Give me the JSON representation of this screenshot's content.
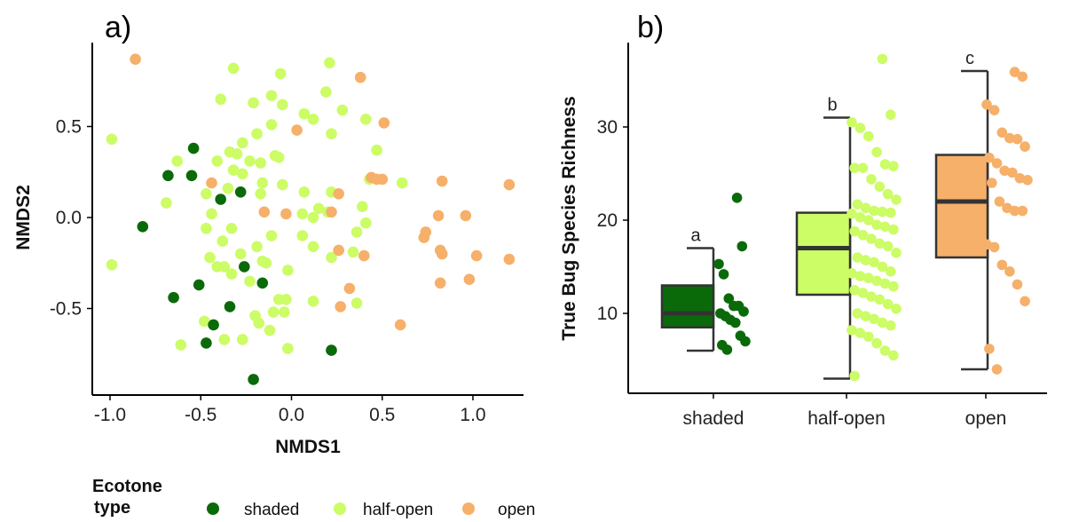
{
  "colors": {
    "shaded": "#0a6a0a",
    "half-open": "#ccfc66",
    "open": "#f6b06a",
    "axis": "#000000",
    "box_line": "#333333"
  },
  "legend": {
    "title_line1": "Ecotone",
    "title_line2": "type",
    "items": [
      {
        "key": "shaded",
        "label": "shaded"
      },
      {
        "key": "half-open",
        "label": "half-open"
      },
      {
        "key": "open",
        "label": "open"
      }
    ]
  },
  "chart_data": [
    {
      "panel": "a)",
      "type": "scatter",
      "xlabel": "NMDS1",
      "ylabel": "NMDS2",
      "xlim": [
        -1.1,
        1.3
      ],
      "ylim": [
        -0.95,
        0.95
      ],
      "xticks": [
        "-1.0",
        "-0.5",
        "0.0",
        "0.5",
        "1.0"
      ],
      "yticks": [
        "0.5",
        "0.0",
        "-0.5"
      ],
      "series": [
        {
          "name": "shaded",
          "points": [
            [
              -0.54,
              0.38
            ],
            [
              -0.68,
              0.23
            ],
            [
              -0.55,
              0.23
            ],
            [
              -0.28,
              0.14
            ],
            [
              -0.39,
              0.1
            ],
            [
              -0.82,
              -0.05
            ],
            [
              -0.26,
              -0.27
            ],
            [
              -0.51,
              -0.37
            ],
            [
              -0.16,
              -0.36
            ],
            [
              -0.65,
              -0.44
            ],
            [
              -0.34,
              -0.49
            ],
            [
              -0.43,
              -0.59
            ],
            [
              -0.47,
              -0.69
            ],
            [
              0.22,
              -0.73
            ],
            [
              -0.21,
              -0.89
            ]
          ]
        },
        {
          "name": "half-open",
          "points": [
            [
              -0.99,
              0.43
            ],
            [
              -0.32,
              0.82
            ],
            [
              -0.06,
              0.79
            ],
            [
              0.21,
              0.85
            ],
            [
              -0.11,
              0.67
            ],
            [
              0.19,
              0.69
            ],
            [
              -0.39,
              0.65
            ],
            [
              -0.21,
              0.63
            ],
            [
              -0.05,
              0.62
            ],
            [
              0.28,
              0.59
            ],
            [
              0.07,
              0.57
            ],
            [
              0.12,
              0.54
            ],
            [
              0.41,
              0.54
            ],
            [
              -0.11,
              0.51
            ],
            [
              0.22,
              0.46
            ],
            [
              -0.19,
              0.46
            ],
            [
              0.47,
              0.37
            ],
            [
              -0.27,
              0.41
            ],
            [
              -0.34,
              0.36
            ],
            [
              -0.3,
              0.35
            ],
            [
              -0.09,
              0.34
            ],
            [
              -0.07,
              0.33
            ],
            [
              -0.23,
              0.31
            ],
            [
              -0.41,
              0.31
            ],
            [
              -0.17,
              0.3
            ],
            [
              -0.63,
              0.31
            ],
            [
              -0.32,
              0.26
            ],
            [
              -0.27,
              0.24
            ],
            [
              0.43,
              0.21
            ],
            [
              0.61,
              0.19
            ],
            [
              -0.16,
              0.19
            ],
            [
              -0.05,
              0.18
            ],
            [
              -0.35,
              0.16
            ],
            [
              0.07,
              0.14
            ],
            [
              0.22,
              0.14
            ],
            [
              -0.17,
              0.13
            ],
            [
              -0.47,
              0.13
            ],
            [
              -0.69,
              0.08
            ],
            [
              0.39,
              0.06
            ],
            [
              0.15,
              0.05
            ],
            [
              0.2,
              0.03
            ],
            [
              0.06,
              0.02
            ],
            [
              -0.44,
              0.02
            ],
            [
              0.12,
              0.0
            ],
            [
              0.41,
              -0.03
            ],
            [
              -0.33,
              -0.06
            ],
            [
              -0.47,
              -0.06
            ],
            [
              0.36,
              -0.08
            ],
            [
              0.06,
              -0.1
            ],
            [
              -0.11,
              -0.1
            ],
            [
              -0.38,
              -0.13
            ],
            [
              -0.19,
              -0.16
            ],
            [
              0.12,
              -0.16
            ],
            [
              -0.28,
              -0.2
            ],
            [
              0.34,
              -0.19
            ],
            [
              -0.45,
              -0.22
            ],
            [
              0.22,
              -0.22
            ],
            [
              -0.16,
              -0.24
            ],
            [
              -0.14,
              -0.25
            ],
            [
              -0.99,
              -0.26
            ],
            [
              -0.37,
              -0.27
            ],
            [
              -0.41,
              -0.27
            ],
            [
              -0.02,
              -0.29
            ],
            [
              -0.33,
              -0.31
            ],
            [
              -0.23,
              -0.35
            ],
            [
              -0.07,
              -0.45
            ],
            [
              -0.03,
              -0.45
            ],
            [
              0.12,
              -0.46
            ],
            [
              0.36,
              -0.47
            ],
            [
              -0.1,
              -0.52
            ],
            [
              -0.04,
              -0.52
            ],
            [
              -0.2,
              -0.54
            ],
            [
              -0.48,
              -0.57
            ],
            [
              -0.18,
              -0.58
            ],
            [
              -0.12,
              -0.62
            ],
            [
              -0.37,
              -0.67
            ],
            [
              -0.27,
              -0.67
            ],
            [
              -0.02,
              -0.72
            ],
            [
              -0.61,
              -0.7
            ]
          ]
        },
        {
          "name": "open",
          "points": [
            [
              -0.86,
              0.87
            ],
            [
              0.38,
              0.77
            ],
            [
              0.51,
              0.52
            ],
            [
              0.03,
              0.48
            ],
            [
              -0.44,
              0.19
            ],
            [
              0.26,
              0.13
            ],
            [
              0.44,
              0.22
            ],
            [
              0.47,
              0.21
            ],
            [
              0.5,
              0.21
            ],
            [
              0.83,
              0.2
            ],
            [
              1.2,
              0.18
            ],
            [
              -0.15,
              0.03
            ],
            [
              -0.03,
              0.02
            ],
            [
              0.22,
              0.03
            ],
            [
              0.81,
              0.01
            ],
            [
              0.96,
              0.01
            ],
            [
              0.74,
              -0.08
            ],
            [
              0.73,
              -0.11
            ],
            [
              0.82,
              -0.18
            ],
            [
              0.83,
              -0.2
            ],
            [
              0.26,
              -0.18
            ],
            [
              0.4,
              -0.21
            ],
            [
              1.02,
              -0.21
            ],
            [
              1.2,
              -0.23
            ],
            [
              0.82,
              -0.36
            ],
            [
              0.98,
              -0.34
            ],
            [
              0.32,
              -0.39
            ],
            [
              0.27,
              -0.49
            ],
            [
              0.6,
              -0.59
            ]
          ]
        }
      ]
    },
    {
      "panel": "b)",
      "type": "box",
      "ylabel": "True Bug Species Richness",
      "ylim": [
        2.5,
        39
      ],
      "yticks": [
        "30",
        "20",
        "10"
      ],
      "categories": [
        "shaded",
        "half-open",
        "open"
      ],
      "boxes": [
        {
          "name": "shaded",
          "whisker_low": 6,
          "q1": 8.5,
          "median": 10,
          "q3": 13,
          "whisker_high": 17,
          "letter": "a",
          "points": [
            22.4,
            17.2,
            15.3,
            14.2,
            11.6,
            10.8,
            10.8,
            10.2,
            10.0,
            9.7,
            9.3,
            9.0,
            7.6,
            7.0,
            6.6,
            6.1
          ]
        },
        {
          "name": "half-open",
          "whisker_low": 3,
          "q1": 12,
          "median": 17,
          "q3": 20.8,
          "whisker_high": 31,
          "letter": "b",
          "points": [
            37.3,
            31.3,
            30.5,
            29.9,
            29.0,
            27.3,
            26.0,
            25.8,
            25.6,
            25.6,
            24.4,
            23.6,
            22.8,
            22.2,
            21.7,
            21.3,
            21.0,
            20.9,
            20.8,
            20.7,
            20.3,
            20.0,
            19.5,
            19.3,
            19.0,
            18.8,
            18.4,
            18.0,
            17.5,
            17.2,
            16.5,
            16.0,
            15.7,
            15.5,
            15.0,
            14.5,
            14.3,
            14.0,
            13.8,
            13.5,
            13.2,
            12.9,
            12.5,
            12.2,
            11.8,
            11.5,
            11.0,
            10.5,
            10.0,
            9.7,
            9.4,
            9.0,
            8.7,
            8.2,
            7.9,
            7.5,
            6.8,
            6.0,
            5.5,
            3.3
          ]
        },
        {
          "name": "open",
          "whisker_low": 4,
          "q1": 16,
          "median": 22,
          "q3": 27,
          "whisker_high": 36,
          "letter": "c",
          "points": [
            35.9,
            35.4,
            32.4,
            31.8,
            29.4,
            28.8,
            28.7,
            27.9,
            26.7,
            26.1,
            25.3,
            25.1,
            24.5,
            24.3,
            24.0,
            22.0,
            21.3,
            21.0,
            21.0,
            17.4,
            17.1,
            15.2,
            14.5,
            13.1,
            11.3,
            6.2,
            4.0
          ]
        }
      ]
    }
  ]
}
